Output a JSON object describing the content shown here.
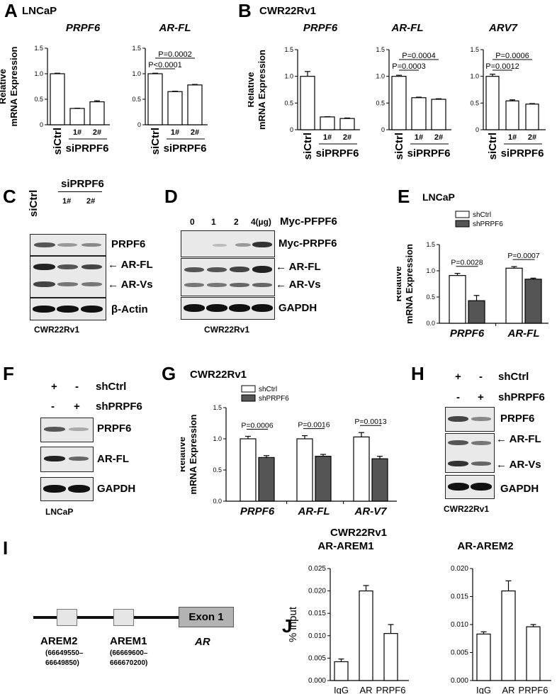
{
  "panels": {
    "A": {
      "letter": "A",
      "cell": "LNCaP"
    },
    "B": {
      "letter": "B",
      "cell": "CWR22Rv1"
    },
    "C": {
      "letter": "C",
      "group": "siPRPF6",
      "ctrl": "siCtrl",
      "lane1": "1#",
      "lane2": "2#",
      "rows": [
        "PRPF6",
        "AR-FL",
        "AR-Vs",
        "β-Actin"
      ],
      "cell": "CWR22Rv1"
    },
    "D": {
      "letter": "D",
      "doses": [
        "0",
        "1",
        "2",
        "4(µg)"
      ],
      "dose_label": "Myc-PFPF6",
      "rows": [
        "Myc-PRPF6",
        "AR-FL",
        "AR-Vs",
        "GAPDH"
      ],
      "cell": "CWR22Rv1"
    },
    "E": {
      "letter": "E",
      "cell": "LNCaP"
    },
    "F": {
      "letter": "F",
      "plus": "+",
      "minus": "-",
      "row1": "shCtrl",
      "row2": "shPRPF6",
      "rows": [
        "PRPF6",
        "AR-FL",
        "GAPDH"
      ],
      "cell": "LNCaP"
    },
    "G": {
      "letter": "G",
      "cell": "CWR22Rv1"
    },
    "H": {
      "letter": "H",
      "plus": "+",
      "minus": "-",
      "row1": "shCtrl",
      "row2": "shPRPF6",
      "rows": [
        "PRPF6",
        "AR-FL",
        "AR-Vs",
        "GAPDH"
      ],
      "cell": "CWR22Rv1"
    },
    "I": {
      "letter": "I",
      "exon": "Exon 1",
      "gene": "AR",
      "arem2": "AREM2",
      "arem2_coord1": "(66649550–",
      "arem2_coord2": "66649850)",
      "arem1": "AREM1",
      "arem1_coord1": "(66669600–",
      "arem1_coord2": "666670200)"
    },
    "J": {
      "letter": "J",
      "cell": "CWR22Rv1"
    }
  },
  "arrow": "←",
  "chart_data": [
    {
      "id": "A1",
      "type": "bar",
      "title": "PRPF6",
      "ylabel": "Relative mRNA Expression",
      "categories": [
        "siCtrl",
        "1#",
        "2#"
      ],
      "values": [
        1.0,
        0.32,
        0.45
      ],
      "errors": [
        0.01,
        0.005,
        0.02
      ],
      "ylim": [
        0,
        1.5
      ],
      "yticks": [
        "0",
        "0.5",
        "1.0",
        "1.5"
      ],
      "group_label": "siPRPF6",
      "pvals": []
    },
    {
      "id": "A2",
      "type": "bar",
      "title": "AR-FL",
      "ylabel": "",
      "categories": [
        "siCtrl",
        "1#",
        "2#"
      ],
      "values": [
        1.0,
        0.65,
        0.78
      ],
      "errors": [
        0.01,
        0.008,
        0.01
      ],
      "ylim": [
        0,
        1.5
      ],
      "yticks": [
        "0",
        "0.5",
        "1.0",
        "1.5"
      ],
      "group_label": "siPRPF6",
      "pvals": [
        "P=0.0002",
        "P<0.0001"
      ]
    },
    {
      "id": "B1",
      "type": "bar",
      "title": "PRPF6",
      "ylabel": "Relative mRNA Expression",
      "categories": [
        "siCtrl",
        "1#",
        "2#"
      ],
      "values": [
        1.0,
        0.24,
        0.21
      ],
      "errors": [
        0.09,
        0.005,
        0.01
      ],
      "ylim": [
        0,
        1.5
      ],
      "yticks": [
        "0",
        "0.5",
        "1.0",
        "1.5"
      ],
      "group_label": "siPRPF6",
      "pvals": []
    },
    {
      "id": "B2",
      "type": "bar",
      "title": "AR-FL",
      "ylabel": "",
      "categories": [
        "siCtrl",
        "1#",
        "2#"
      ],
      "values": [
        1.0,
        0.6,
        0.57
      ],
      "errors": [
        0.02,
        0.01,
        0.01
      ],
      "ylim": [
        0,
        1.5
      ],
      "yticks": [
        "0",
        "0.5",
        "1.0",
        "1.5"
      ],
      "group_label": "siPRPF6",
      "pvals": [
        "P=0.0004",
        "P=0.0003"
      ]
    },
    {
      "id": "B3",
      "type": "bar",
      "title": "ARV7",
      "ylabel": "",
      "categories": [
        "siCtrl",
        "1#",
        "2#"
      ],
      "values": [
        1.0,
        0.54,
        0.48
      ],
      "errors": [
        0.04,
        0.02,
        0.01
      ],
      "ylim": [
        0,
        1.5
      ],
      "yticks": [
        "0",
        "0.5",
        "1.0",
        "1.5"
      ],
      "group_label": "siPRPF6",
      "pvals": [
        "P=0.0006",
        "P=0.0012"
      ]
    },
    {
      "id": "E",
      "type": "bar",
      "ylabel": "Relative mRNA Expression",
      "categories": [
        "PRPF6",
        "AR-FL"
      ],
      "series": [
        {
          "name": "shCtrl",
          "values": [
            0.91,
            1.05
          ],
          "errors": [
            0.04,
            0.03
          ]
        },
        {
          "name": "shPRPF6",
          "values": [
            0.43,
            0.84
          ],
          "errors": [
            0.1,
            0.02
          ]
        }
      ],
      "ylim": [
        0,
        1.5
      ],
      "yticks": [
        "0.0",
        "0.5",
        "1.0",
        "1.5"
      ],
      "pvals": [
        "P=0.0028",
        "P=0.0007"
      ]
    },
    {
      "id": "G",
      "type": "bar",
      "ylabel": "Relative mRNA Expression",
      "categories": [
        "PRPF6",
        "AR-FL",
        "AR-V7"
      ],
      "series": [
        {
          "name": "shCtrl",
          "values": [
            1.0,
            1.0,
            1.03
          ],
          "errors": [
            0.04,
            0.05,
            0.07
          ]
        },
        {
          "name": "shPRPF6",
          "values": [
            0.7,
            0.72,
            0.68
          ],
          "errors": [
            0.03,
            0.03,
            0.04
          ]
        }
      ],
      "ylim": [
        0,
        1.5
      ],
      "yticks": [
        "0.0",
        "0.5",
        "1.0",
        "1.5"
      ],
      "pvals": [
        "P=0.0006",
        "P=0.0016",
        "P=0.0013"
      ]
    },
    {
      "id": "J1",
      "type": "bar",
      "title": "AR-AREM1",
      "ylabel": "% input",
      "categories": [
        "IgG",
        "AR",
        "PRPF6"
      ],
      "values": [
        0.0042,
        0.02,
        0.0105
      ],
      "errors": [
        0.0006,
        0.0012,
        0.002
      ],
      "ylim": [
        0,
        0.025
      ],
      "yticks": [
        "0.000",
        "0.005",
        "0.010",
        "0.015",
        "0.020",
        "0.025"
      ]
    },
    {
      "id": "J2",
      "type": "bar",
      "title": "AR-AREM2",
      "ylabel": "",
      "categories": [
        "IgG",
        "AR",
        "PRPF6"
      ],
      "values": [
        0.0083,
        0.016,
        0.0096
      ],
      "errors": [
        0.0004,
        0.0018,
        0.0004
      ],
      "ylim": [
        0,
        0.02
      ],
      "yticks": [
        "0.000",
        "0.005",
        "0.010",
        "0.015",
        "0.020"
      ]
    }
  ]
}
